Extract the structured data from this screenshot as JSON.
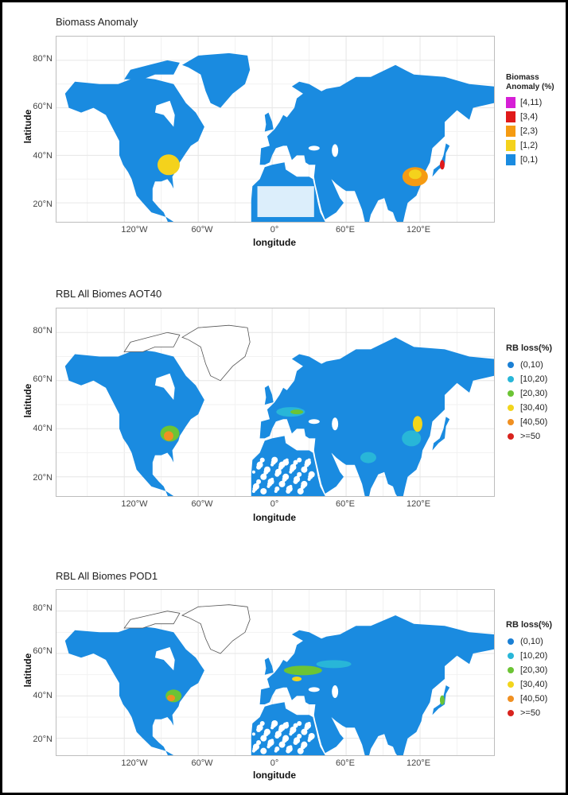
{
  "colors": {
    "land": "#1a8be0",
    "ocean": "#ffffff",
    "grid": "#e6e6e6",
    "outline": "#555555"
  },
  "axis": {
    "xlabel": "longitude",
    "ylabel": "latitude",
    "lon_ticks": [
      "120°W",
      "60°W",
      "0°",
      "60°E",
      "120°E"
    ],
    "lat_ticks": [
      "80°N",
      "60°N",
      "40°N",
      "20°N"
    ]
  },
  "panels": [
    {
      "title": "Biomass Anomaly",
      "legend_title_line1": "Biomass",
      "legend_title_line2": "Anomaly (%)",
      "legend": [
        {
          "label": "[4,11)",
          "color": "#d61fd6"
        },
        {
          "label": "[3,4)",
          "color": "#e01a1a"
        },
        {
          "label": "[2,3)",
          "color": "#f59b12"
        },
        {
          "label": "[1,2)",
          "color": "#f4d21c"
        },
        {
          "label": "[0,1)",
          "color": "#1a8be0"
        }
      ],
      "hotspots": [
        "eastern-united-states",
        "eastern-china",
        "japan"
      ]
    },
    {
      "title": "RBL All Biomes AOT40",
      "legend_title_line1": "RB loss(%)",
      "legend": [
        {
          "label": "(0,10)",
          "color": "#1a7fd4"
        },
        {
          "label": "[10,20)",
          "color": "#28b6d8"
        },
        {
          "label": "[20,30)",
          "color": "#6cc435"
        },
        {
          "label": "[30,40)",
          "color": "#f2d51c"
        },
        {
          "label": "[40,50)",
          "color": "#f09022"
        },
        {
          "label": ">=50",
          "color": "#d8231e"
        }
      ],
      "hotspots": [
        "eastern-united-states",
        "europe",
        "india",
        "eastern-china"
      ]
    },
    {
      "title": "RBL All Biomes POD1",
      "legend_title_line1": "RB loss(%)",
      "legend": [
        {
          "label": "(0,10)",
          "color": "#1a7fd4"
        },
        {
          "label": "[10,20)",
          "color": "#28b6d8"
        },
        {
          "label": "[20,30)",
          "color": "#6cc435"
        },
        {
          "label": "[30,40)",
          "color": "#f2d51c"
        },
        {
          "label": "[40,50)",
          "color": "#f09022"
        },
        {
          "label": ">=50",
          "color": "#d8231e"
        }
      ],
      "hotspots": [
        "eastern-united-states",
        "europe",
        "russia",
        "japan"
      ]
    }
  ]
}
